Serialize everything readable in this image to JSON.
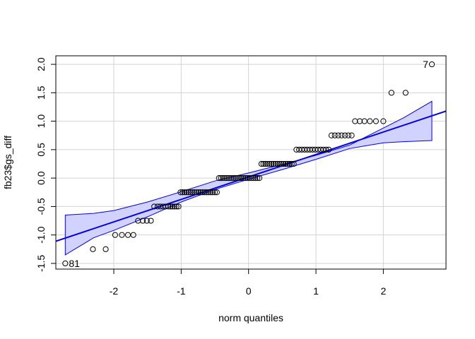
{
  "chart_data": {
    "type": "scatter",
    "title": "",
    "xlabel": "norm quantiles",
    "ylabel": "fb23$gs_diff",
    "xlim": [
      -2.86,
      2.93
    ],
    "ylim": [
      -1.6,
      2.15
    ],
    "xticks": [
      -2,
      -1,
      0,
      1,
      2
    ],
    "yticks": [
      -1.5,
      -1.0,
      -0.5,
      0.0,
      0.5,
      1.0,
      1.5,
      2.0
    ],
    "xtick_labels": [
      "-2",
      "-1",
      "0",
      "1",
      "2"
    ],
    "ytick_labels": [
      "-1.5",
      "-1.0",
      "-0.5",
      "0.0",
      "0.5",
      "1.0",
      "1.5",
      "2.0"
    ],
    "grid": true,
    "colors": {
      "line": "#0000ee",
      "band_fill": "#d2d2ff",
      "band_edge": "#0000ee",
      "points": "#000000",
      "grid": "#d3d3d3"
    },
    "reference_line": {
      "intercept": 0.02,
      "slope": 0.395
    },
    "confidence_band": {
      "x": [
        -2.72,
        -2.3,
        -2.0,
        -1.5,
        -1.0,
        -0.5,
        0.0,
        0.5,
        1.0,
        1.5,
        2.0,
        2.3,
        2.72
      ],
      "lower": [
        -1.35,
        -1.05,
        -0.92,
        -0.68,
        -0.42,
        -0.2,
        -0.02,
        0.15,
        0.33,
        0.52,
        0.62,
        0.64,
        0.66
      ],
      "upper": [
        -0.65,
        -0.62,
        -0.57,
        -0.42,
        -0.24,
        -0.05,
        0.09,
        0.24,
        0.4,
        0.58,
        0.88,
        1.06,
        1.35
      ]
    },
    "groups": [
      {
        "y": -1.5,
        "x": [
          -2.72
        ]
      },
      {
        "y": -1.25,
        "x": [
          -2.31,
          -2.12
        ]
      },
      {
        "y": -1.0,
        "x": [
          -1.98,
          -1.88,
          -1.79,
          -1.71
        ]
      },
      {
        "y": -0.75,
        "x": [
          -1.64,
          -1.57,
          -1.51,
          -1.45
        ]
      },
      {
        "y": -0.5,
        "x": [
          -1.4,
          -1.35,
          -1.31,
          -1.27,
          -1.23,
          -1.19,
          -1.16,
          -1.13,
          -1.1,
          -1.07,
          -1.04
        ]
      },
      {
        "y": -0.25,
        "x": [
          -1.01,
          -0.98,
          -0.95,
          -0.92,
          -0.89,
          -0.86,
          -0.83,
          -0.8,
          -0.77,
          -0.74,
          -0.71,
          -0.68,
          -0.65,
          -0.62,
          -0.59,
          -0.56,
          -0.53,
          -0.5,
          -0.47
        ]
      },
      {
        "y": 0.0,
        "x": [
          -0.44,
          -0.41,
          -0.38,
          -0.35,
          -0.32,
          -0.29,
          -0.26,
          -0.23,
          -0.2,
          -0.17,
          -0.14,
          -0.11,
          -0.08,
          -0.05,
          -0.02,
          0.01,
          0.04,
          0.07,
          0.1,
          0.13,
          0.16
        ]
      },
      {
        "y": 0.25,
        "x": [
          0.19,
          0.22,
          0.25,
          0.28,
          0.31,
          0.34,
          0.37,
          0.4,
          0.43,
          0.46,
          0.49,
          0.52,
          0.55,
          0.58,
          0.61,
          0.64,
          0.67
        ]
      },
      {
        "y": 0.5,
        "x": [
          0.71,
          0.75,
          0.79,
          0.83,
          0.87,
          0.91,
          0.95,
          0.99,
          1.03,
          1.07,
          1.11,
          1.15,
          1.19
        ]
      },
      {
        "y": 0.75,
        "x": [
          1.23,
          1.28,
          1.33,
          1.38,
          1.43,
          1.48,
          1.53
        ]
      },
      {
        "y": 1.0,
        "x": [
          1.58,
          1.65,
          1.72,
          1.8,
          1.89,
          2.0
        ]
      },
      {
        "y": 1.5,
        "x": [
          2.12,
          2.33
        ]
      },
      {
        "y": 2.0,
        "x": [
          2.72
        ]
      }
    ],
    "point_labels": [
      {
        "text": "81",
        "x": -2.72,
        "y": -1.5,
        "side": "right"
      },
      {
        "text": "7",
        "x": 2.72,
        "y": 2.0,
        "side": "left"
      }
    ]
  }
}
